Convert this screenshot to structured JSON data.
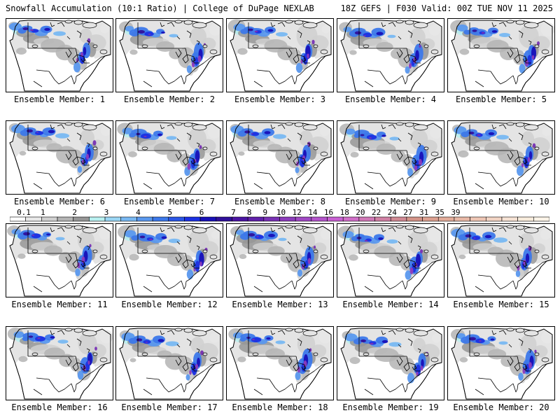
{
  "header": {
    "title": "Snowfall Accumulation (10:1 Ratio) | College of DuPage NEXLAB",
    "run_info": "18Z GEFS | F030 Valid: 00Z TUE NOV 11 2025"
  },
  "members": [
    {
      "label": "Ensemble Member: 1"
    },
    {
      "label": "Ensemble Member: 2"
    },
    {
      "label": "Ensemble Member: 3"
    },
    {
      "label": "Ensemble Member: 4"
    },
    {
      "label": "Ensemble Member: 5"
    },
    {
      "label": "Ensemble Member: 6"
    },
    {
      "label": "Ensemble Member: 7"
    },
    {
      "label": "Ensemble Member: 8"
    },
    {
      "label": "Ensemble Member: 9"
    },
    {
      "label": "Ensemble Member: 10"
    },
    {
      "label": "Ensemble Member: 11"
    },
    {
      "label": "Ensemble Member: 12"
    },
    {
      "label": "Ensemble Member: 13"
    },
    {
      "label": "Ensemble Member: 14"
    },
    {
      "label": "Ensemble Member: 15"
    },
    {
      "label": "Ensemble Member: 16"
    },
    {
      "label": "Ensemble Member: 17"
    },
    {
      "label": "Ensemble Member: 18"
    },
    {
      "label": "Ensemble Member: 19"
    },
    {
      "label": "Ensemble Member: 20"
    }
  ],
  "colorbar": {
    "ticks": [
      "0.1",
      "1",
      "2",
      "3",
      "4",
      "5",
      "6",
      "7",
      "8",
      "9",
      "10",
      "12",
      "14",
      "16",
      "18",
      "20",
      "22",
      "24",
      "27",
      "31",
      "35",
      "39"
    ],
    "colors": [
      "#ffffff",
      "#e8e8e8",
      "#d0d0d0",
      "#b4b4b4",
      "#969696",
      "#b8f0f0",
      "#9ad6f4",
      "#78b8f2",
      "#5a98ee",
      "#3c78ea",
      "#2a56e6",
      "#1c30e2",
      "#1810b8",
      "#30109a",
      "#4a14a2",
      "#6020aa",
      "#7830b4",
      "#8c3cbc",
      "#a048c4",
      "#b454cc",
      "#c860d2",
      "#d06ec8",
      "#d078b6",
      "#d080a4",
      "#d08a94",
      "#d49488",
      "#dca090",
      "#e2ac9a",
      "#e8b8a6",
      "#eec6b4",
      "#f2d4c4",
      "#f6e2d4",
      "#f8ecdc",
      "#fcf4e8"
    ]
  }
}
